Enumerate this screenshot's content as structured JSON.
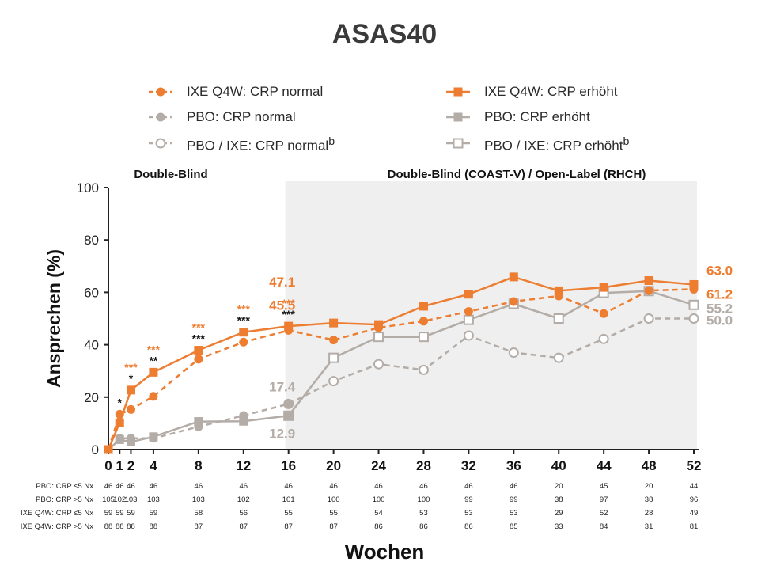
{
  "chart_data": {
    "type": "line",
    "title": "ASAS40",
    "xlabel": "Wochen",
    "ylabel": "Ansprechen (%)",
    "ylim": [
      0,
      100
    ],
    "yticks": [
      0,
      20,
      40,
      60,
      80,
      100
    ],
    "x": [
      0,
      1,
      2,
      4,
      8,
      12,
      16,
      20,
      24,
      28,
      32,
      36,
      40,
      44,
      48,
      52
    ],
    "x_tick_labels": [
      "0",
      "1",
      "2",
      "4",
      "8",
      "12",
      "16",
      "20",
      "24",
      "28",
      "32",
      "36",
      "40",
      "44",
      "48",
      "52"
    ],
    "grid": false,
    "legend_position": "top",
    "period_labels": [
      "Double-Blind",
      "Double-Blind (COAST-V) / Open-Label (RHCH)"
    ],
    "shaded_region_start_week": 16,
    "series": [
      {
        "name": "IXE Q4W: CRP normal",
        "color": "#ed7d31",
        "dash": true,
        "marker": "circle-filled",
        "x": [
          0,
          1,
          2,
          4,
          8,
          12,
          16,
          20,
          24,
          28,
          32,
          36,
          40,
          44,
          48,
          52
        ],
        "values": [
          0,
          13.5,
          15.3,
          20.3,
          34.5,
          41.0,
          45.5,
          41.8,
          46.5,
          49.0,
          52.7,
          56.5,
          58.6,
          51.9,
          60.7,
          61.2
        ]
      },
      {
        "name": "PBO: CRP normal",
        "color": "#b3aca7",
        "dash": true,
        "marker": "circle-filled",
        "x": [
          0,
          1,
          2,
          4,
          8,
          12,
          16
        ],
        "values": [
          0,
          4.3,
          4.3,
          4.3,
          8.7,
          13.0,
          17.4
        ]
      },
      {
        "name": "PBO / IXE: CRP normal",
        "legend_superscript": "b",
        "color": "#b3aca7",
        "dash": true,
        "marker": "circle-open",
        "x": [
          16,
          20,
          24,
          28,
          32,
          36,
          40,
          44,
          48,
          52
        ],
        "values": [
          17.4,
          26.1,
          32.6,
          30.4,
          43.5,
          37.0,
          35.0,
          42.2,
          50.0,
          50.0
        ]
      },
      {
        "name": "IXE Q4W: CRP erhöht",
        "color": "#ed7d31",
        "dash": false,
        "marker": "square-filled",
        "x": [
          0,
          1,
          2,
          4,
          8,
          12,
          16,
          20,
          24,
          28,
          32,
          36,
          40,
          44,
          48,
          52
        ],
        "values": [
          0,
          10.2,
          22.7,
          29.5,
          37.9,
          44.8,
          47.1,
          48.3,
          47.7,
          54.7,
          59.3,
          65.9,
          60.6,
          61.9,
          64.5,
          63.0
        ]
      },
      {
        "name": "PBO: CRP erhöht",
        "color": "#b3aca7",
        "dash": false,
        "marker": "square-filled",
        "x": [
          0,
          1,
          2,
          4,
          8,
          12,
          16
        ],
        "values": [
          0,
          3.8,
          2.9,
          4.9,
          10.7,
          10.8,
          12.9
        ]
      },
      {
        "name": "PBO / IXE: CRP erhöht",
        "legend_superscript": "b",
        "color": "#b3aca7",
        "dash": false,
        "marker": "square-open",
        "x": [
          16,
          20,
          24,
          28,
          32,
          36,
          40,
          44,
          48,
          52
        ],
        "values": [
          12.9,
          35.0,
          43.0,
          43.0,
          49.5,
          55.6,
          50.0,
          59.8,
          60.5,
          55.2
        ]
      }
    ],
    "value_labels": [
      {
        "x": 16,
        "y": 47.1,
        "text": "47.1",
        "color": "#ed7d31"
      },
      {
        "x": 16,
        "y": 45.5,
        "text": "45.5",
        "color": "#ed7d31"
      },
      {
        "x": 16,
        "y": 17.4,
        "text": "17.4",
        "color": "#b3aca7"
      },
      {
        "x": 16,
        "y": 12.9,
        "text": "12.9",
        "color": "#b3aca7"
      },
      {
        "x": 52,
        "y": 63.0,
        "text": "63.0",
        "color": "#ed7d31"
      },
      {
        "x": 52,
        "y": 61.2,
        "text": "61.2",
        "color": "#ed7d31"
      },
      {
        "x": 52,
        "y": 55.2,
        "text": "55.2",
        "color": "#b3aca7"
      },
      {
        "x": 52,
        "y": 50.0,
        "text": "50.0",
        "color": "#b3aca7"
      }
    ],
    "significance": [
      {
        "x": 1,
        "y": 13.5,
        "black": "*",
        "orange": ""
      },
      {
        "x": 2,
        "y": 22.7,
        "black": "*",
        "orange": "***"
      },
      {
        "x": 4,
        "y": 29.5,
        "black": "**",
        "orange": "***"
      },
      {
        "x": 8,
        "y": 37.9,
        "black": "***",
        "orange": "***"
      },
      {
        "x": 12,
        "y": 44.8,
        "black": "***",
        "orange": "***"
      },
      {
        "x": 16,
        "y": 47.1,
        "black": "***",
        "orange": "***"
      }
    ],
    "table": {
      "rows": [
        {
          "label": "PBO: CRP ≤5  Nx",
          "values": [
            "46",
            "46",
            "46",
            "46",
            "46",
            "46",
            "46",
            "46",
            "46",
            "46",
            "46",
            "46",
            "20",
            "45",
            "20",
            "44"
          ]
        },
        {
          "label": "PBO: CRP >5  Nx",
          "values": [
            "105",
            "102",
            "103",
            "103",
            "103",
            "102",
            "101",
            "100",
            "100",
            "100",
            "99",
            "99",
            "38",
            "97",
            "38",
            "96"
          ]
        },
        {
          "label": "IXE Q4W: CRP ≤5  Nx",
          "values": [
            "59",
            "59",
            "59",
            "59",
            "58",
            "56",
            "55",
            "55",
            "54",
            "53",
            "53",
            "53",
            "29",
            "52",
            "28",
            "49"
          ]
        },
        {
          "label": "IXE Q4W: CRP >5  Nx",
          "values": [
            "88",
            "88",
            "88",
            "88",
            "87",
            "87",
            "87",
            "87",
            "86",
            "86",
            "86",
            "85",
            "33",
            "84",
            "31",
            "81"
          ]
        }
      ]
    }
  }
}
